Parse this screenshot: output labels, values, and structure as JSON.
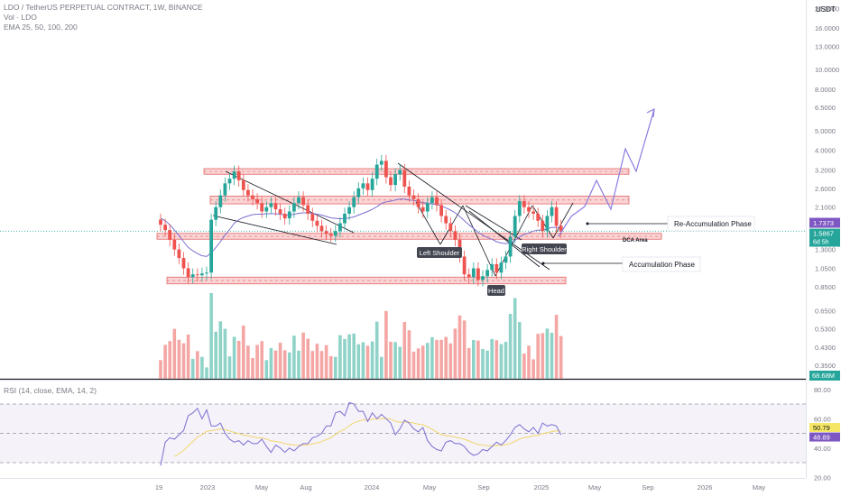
{
  "header": {
    "title": "LDO / TetherUS PERPETUAL CONTRACT, 1W, BINANCE",
    "vol": "Vol · LDO",
    "ema": "EMA 25, 50, 100, 200",
    "currency": "USDT"
  },
  "rsi_header": "RSI (14, close, EMA, 14, 2)",
  "colors": {
    "up": "#26a69a",
    "down": "#ef5350",
    "vol_up": "#8fd3c8",
    "vol_down": "#f4a6a4",
    "zone_fill": "#fad4d4",
    "zone_line": "#e06666",
    "ema": "#7b6fd0",
    "rsi": "#7b6fd0",
    "rsi_ma": "#f2d66b",
    "projection": "#8b7be0",
    "price_badge": "#7e57c2",
    "last_badge": "#26a69a",
    "volume_badge": "#26a69a",
    "rsi_badge": "#7e57c2",
    "rsi_ma_badge": "#f5e663"
  },
  "price_axis": {
    "ticks": [
      "20.0000",
      "16.0000",
      "13.0000",
      "10.0000",
      "8.0000",
      "6.5000",
      "5.0000",
      "4.0000",
      "3.2000",
      "2.6000",
      "2.1000",
      "1.3000",
      "1.0500",
      "0.8500",
      "0.6500",
      "0.5300",
      "0.4300",
      "0.3500"
    ],
    "current_price": "1.7373",
    "last_price": "1.5867",
    "countdown": "6d 5h",
    "volume_badge": "68.68M"
  },
  "rsi_axis": {
    "ticks": [
      "80.00",
      "60.00",
      "40.00",
      "20.00"
    ],
    "rsi_value": "48.89",
    "rsi_ma_value": "50.79"
  },
  "time_axis": [
    "19",
    "2023",
    "May",
    "Aug",
    "2024",
    "May",
    "Sep",
    "2025",
    "May",
    "Sep",
    "2026",
    "May"
  ],
  "annotations": {
    "left_shoulder": "Left Shoulder",
    "head": "Head",
    "right_shoulder": "Right Shoulder",
    "dca_area": "DCA Area",
    "re_accumulation": "Re-Accumulation Phase",
    "accumulation": "Accumulation Phase"
  },
  "chart_data": {
    "type": "candlestick",
    "title": "LDO / TetherUS PERPETUAL CONTRACT, 1W, BINANCE",
    "scale": "log",
    "ylim": [
      0.3,
      22
    ],
    "zones": [
      {
        "low": 3.05,
        "high": 3.25
      },
      {
        "low": 2.18,
        "high": 2.38
      },
      {
        "low": 1.46,
        "high": 1.56
      },
      {
        "low": 0.88,
        "high": 0.95
      }
    ],
    "rsi_levels": [
      70,
      50,
      30
    ],
    "closes": [
      1.72,
      1.62,
      1.45,
      1.3,
      1.18,
      1.05,
      0.95,
      0.98,
      0.97,
      0.99,
      1.0,
      1.82,
      2.1,
      2.4,
      2.75,
      2.9,
      3.15,
      2.85,
      2.55,
      2.4,
      2.3,
      2.2,
      2.0,
      2.1,
      2.2,
      2.05,
      1.95,
      1.85,
      2.0,
      2.2,
      2.35,
      2.15,
      1.95,
      1.8,
      1.7,
      1.6,
      1.55,
      1.52,
      1.6,
      1.75,
      1.95,
      2.1,
      2.35,
      2.6,
      2.75,
      2.55,
      2.9,
      3.4,
      3.55,
      2.95,
      2.7,
      3.05,
      3.2,
      2.65,
      2.4,
      2.3,
      2.1,
      2.0,
      2.2,
      2.35,
      2.15,
      1.9,
      1.75,
      1.6,
      1.45,
      1.2,
      0.98,
      0.95,
      1.05,
      0.92,
      0.96,
      1.03,
      1.1,
      1.0,
      1.12,
      1.2,
      1.5,
      1.9,
      2.25,
      2.1,
      2.0,
      1.95,
      1.8,
      1.6,
      1.9,
      2.1,
      1.7,
      1.59
    ],
    "ema": [
      1.85,
      1.8,
      1.72,
      1.62,
      1.52,
      1.42,
      1.33,
      1.28,
      1.24,
      1.21,
      1.2,
      1.25,
      1.33,
      1.42,
      1.53,
      1.63,
      1.75,
      1.82,
      1.87,
      1.9,
      1.93,
      1.94,
      1.94,
      1.95,
      1.95,
      1.95,
      1.94,
      1.92,
      1.92,
      1.94,
      1.96,
      1.97,
      1.97,
      1.96,
      1.94,
      1.92,
      1.89,
      1.86,
      1.85,
      1.84,
      1.85,
      1.86,
      1.88,
      1.92,
      1.96,
      2.0,
      2.05,
      2.11,
      2.19,
      2.23,
      2.25,
      2.28,
      2.3,
      2.3,
      2.28,
      2.27,
      2.24,
      2.21,
      2.2,
      2.18,
      2.16,
      2.13,
      2.08,
      2.03,
      1.97,
      1.89,
      1.8,
      1.72,
      1.65,
      1.58,
      1.53,
      1.49,
      1.46,
      1.42,
      1.4,
      1.39,
      1.4,
      1.44,
      1.5,
      1.54,
      1.57,
      1.6,
      1.62,
      1.62,
      1.64,
      1.67,
      1.67,
      1.66
    ],
    "rsi": [
      28,
      44,
      47,
      46,
      49,
      52,
      62,
      64,
      67,
      60,
      66,
      55,
      55,
      57,
      50,
      46,
      44,
      45,
      42,
      45,
      43,
      43,
      46,
      41,
      37,
      42,
      40,
      37,
      40,
      38,
      41,
      43,
      43,
      47,
      48,
      50,
      55,
      55,
      64,
      65,
      62,
      71,
      70,
      65,
      65,
      58,
      64,
      60,
      63,
      60,
      57,
      49,
      53,
      59,
      57,
      53,
      51,
      54,
      45,
      41,
      39,
      38,
      44,
      45,
      43,
      43,
      41,
      37,
      35,
      36,
      39,
      38,
      41,
      44,
      42,
      45,
      49,
      54,
      56,
      53,
      51,
      54,
      50,
      57,
      55,
      56,
      55,
      49
    ]
  }
}
